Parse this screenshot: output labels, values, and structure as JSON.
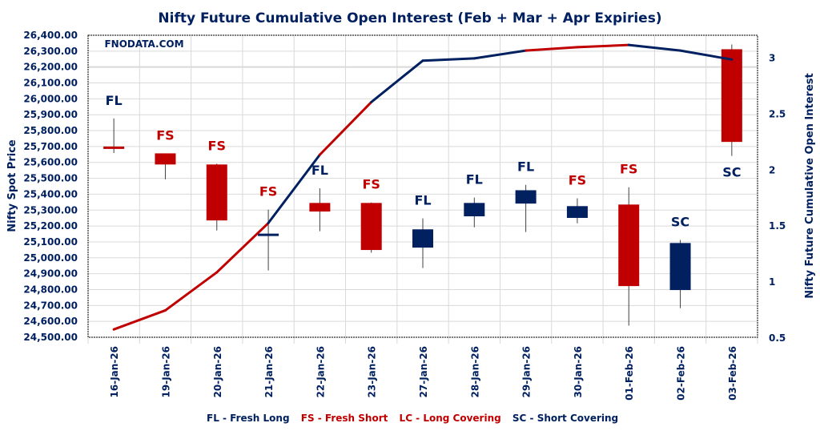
{
  "chart_data": {
    "type": "candlestick+line",
    "title": "Nifty Future Cumulative Open Interest (Feb + Mar + Apr Expiries)",
    "watermark": "FNODATA.COM",
    "ylabel_left": "Nifty Spot Price",
    "ylabel_right": "Nifty Future Cumulative Open Interest",
    "ylim_left": [
      24500,
      26400
    ],
    "ylim_right": [
      0.5,
      3
    ],
    "left_ticks": [
      "24,500.00",
      "24,600.00",
      "24,700.00",
      "24,800.00",
      "24,900.00",
      "25,000.00",
      "25,100.00",
      "25,200.00",
      "25,300.00",
      "25,400.00",
      "25,500.00",
      "25,600.00",
      "25,700.00",
      "25,800.00",
      "25,900.00",
      "26,000.00",
      "26,100.00",
      "26,200.00",
      "26,300.00",
      "26,400.00"
    ],
    "right_ticks": [
      "0.5",
      "1",
      "1.5",
      "2",
      "2.5",
      "3"
    ],
    "grid": true,
    "categories": [
      "16-Jan-26",
      "19-Jan-26",
      "20-Jan-26",
      "21-Jan-26",
      "22-Jan-26",
      "23-Jan-26",
      "27-Jan-26",
      "28-Jan-26",
      "29-Jan-26",
      "30-Jan-26",
      "01-Feb-26",
      "02-Feb-26",
      "03-Feb-26"
    ],
    "candles": [
      {
        "open": 25700,
        "high": 25877,
        "low": 25659,
        "close": 25694,
        "color": "red"
      },
      {
        "open": 25657,
        "high": 25657,
        "low": 25494,
        "close": 25587,
        "color": "red"
      },
      {
        "open": 25587,
        "high": 25592,
        "low": 25172,
        "close": 25235,
        "color": "red"
      },
      {
        "open": 25148,
        "high": 25303,
        "low": 24920,
        "close": 25152,
        "color": "navy"
      },
      {
        "open": 25345,
        "high": 25437,
        "low": 25167,
        "close": 25291,
        "color": "red"
      },
      {
        "open": 25345,
        "high": 25348,
        "low": 25032,
        "close": 25049,
        "color": "red"
      },
      {
        "open": 25064,
        "high": 25248,
        "low": 24935,
        "close": 25179,
        "color": "navy"
      },
      {
        "open": 25261,
        "high": 25379,
        "low": 25192,
        "close": 25345,
        "color": "navy"
      },
      {
        "open": 25341,
        "high": 25459,
        "low": 25162,
        "close": 25425,
        "color": "navy"
      },
      {
        "open": 25251,
        "high": 25374,
        "low": 25217,
        "close": 25325,
        "color": "navy"
      },
      {
        "open": 25335,
        "high": 25444,
        "low": 24573,
        "close": 24822,
        "color": "red"
      },
      {
        "open": 24797,
        "high": 25112,
        "low": 24683,
        "close": 25093,
        "color": "navy"
      },
      {
        "open": 26312,
        "high": 26342,
        "low": 25641,
        "close": 25729,
        "color": "red"
      }
    ],
    "signals": [
      "FL",
      "FS",
      "FS",
      "FS",
      "FL",
      "FS",
      "FL",
      "FL",
      "FL",
      "FS",
      "FS",
      "SC",
      "SC"
    ],
    "open_interest": [
      0.57,
      0.74,
      1.08,
      1.52,
      2.13,
      2.6,
      2.97,
      2.99,
      3.06,
      3.09,
      3.11,
      3.06,
      2.98
    ],
    "legend": [
      {
        "key": "FL",
        "text": "FL - Fresh Long",
        "color": "navy"
      },
      {
        "key": "FS",
        "text": "FS - Fresh Short",
        "color": "red"
      },
      {
        "key": "LC",
        "text": "LC - Long Covering",
        "color": "red"
      },
      {
        "key": "SC",
        "text": "SC - Short Covering",
        "color": "navy"
      }
    ],
    "legend_position": "bottom"
  },
  "colors": {
    "navy": "#002060",
    "red": "#C00000",
    "grid": "#D9D9D9",
    "wick": "#404040"
  }
}
